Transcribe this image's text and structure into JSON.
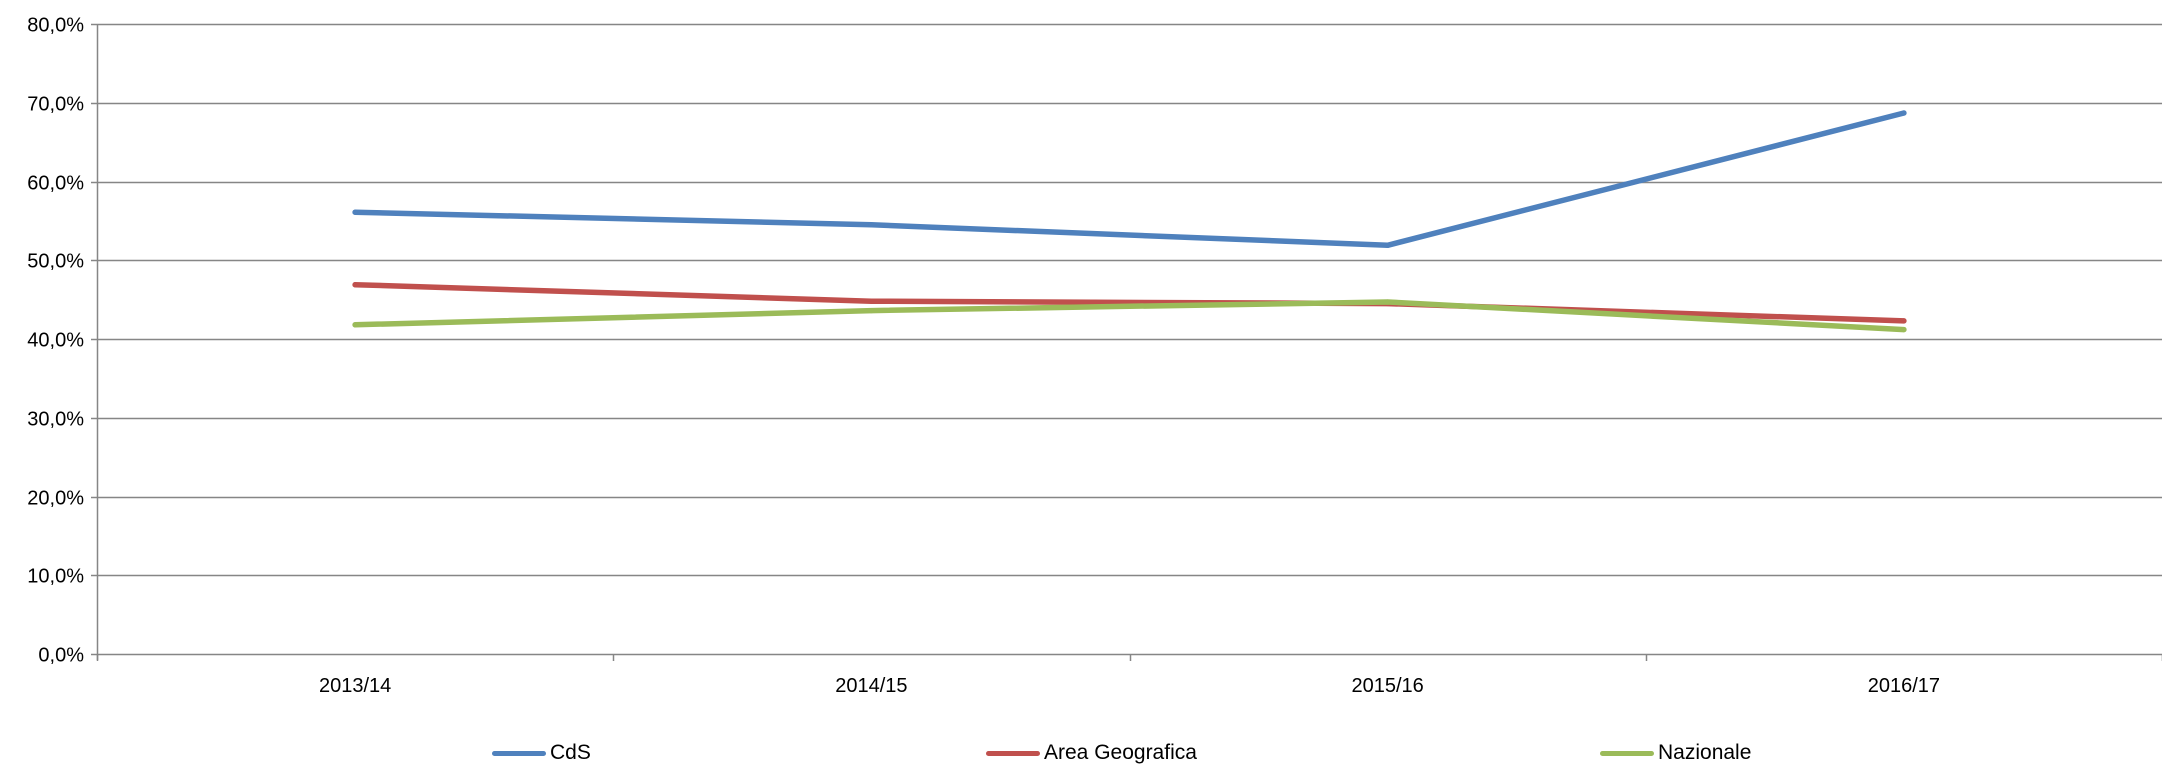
{
  "chart_data": {
    "type": "line",
    "title": "",
    "xlabel": "",
    "ylabel": "",
    "categories": [
      "2013/14",
      "2014/15",
      "2015/16",
      "2016/17"
    ],
    "ylim": [
      0,
      80
    ],
    "yticks": [
      0,
      10,
      20,
      30,
      40,
      50,
      60,
      70,
      80
    ],
    "ytick_labels": [
      "0,0%",
      "10,0%",
      "20,0%",
      "30,0%",
      "40,0%",
      "50,0%",
      "60,0%",
      "70,0%",
      "80,0%"
    ],
    "grid": true,
    "legend_position": "bottom",
    "series": [
      {
        "name": "CdS",
        "color": "#4F81BD",
        "values": [
          56.1,
          54.5,
          51.9,
          68.7
        ]
      },
      {
        "name": "Area Geografica",
        "color": "#C0504D",
        "values": [
          46.9,
          44.8,
          44.5,
          42.3
        ]
      },
      {
        "name": "Nazionale",
        "color": "#9BBB59",
        "values": [
          41.8,
          43.6,
          44.7,
          41.2
        ]
      }
    ]
  }
}
